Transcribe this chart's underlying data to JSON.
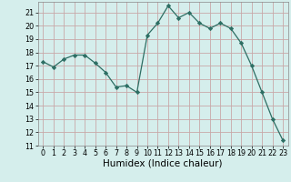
{
  "x": [
    0,
    1,
    2,
    3,
    4,
    5,
    6,
    7,
    8,
    9,
    10,
    11,
    12,
    13,
    14,
    15,
    16,
    17,
    18,
    19,
    20,
    21,
    22,
    23
  ],
  "y": [
    17.3,
    16.9,
    17.5,
    17.8,
    17.8,
    17.2,
    16.5,
    15.4,
    15.5,
    15.0,
    19.3,
    20.2,
    21.5,
    20.6,
    21.0,
    20.2,
    19.8,
    20.2,
    19.8,
    18.7,
    17.0,
    15.0,
    13.0,
    11.4
  ],
  "xlabel": "Humidex (Indice chaleur)",
  "ylim": [
    11,
    21.8
  ],
  "xlim": [
    -0.5,
    23.5
  ],
  "yticks": [
    11,
    12,
    13,
    14,
    15,
    16,
    17,
    18,
    19,
    20,
    21
  ],
  "xticks": [
    0,
    1,
    2,
    3,
    4,
    5,
    6,
    7,
    8,
    9,
    10,
    11,
    12,
    13,
    14,
    15,
    16,
    17,
    18,
    19,
    20,
    21,
    22,
    23
  ],
  "line_color": "#2d6e63",
  "marker": "D",
  "marker_size": 2.2,
  "bg_color": "#d5eeec",
  "grid_color": "#c8a8a8",
  "tick_fontsize": 5.8,
  "xlabel_fontsize": 7.5
}
